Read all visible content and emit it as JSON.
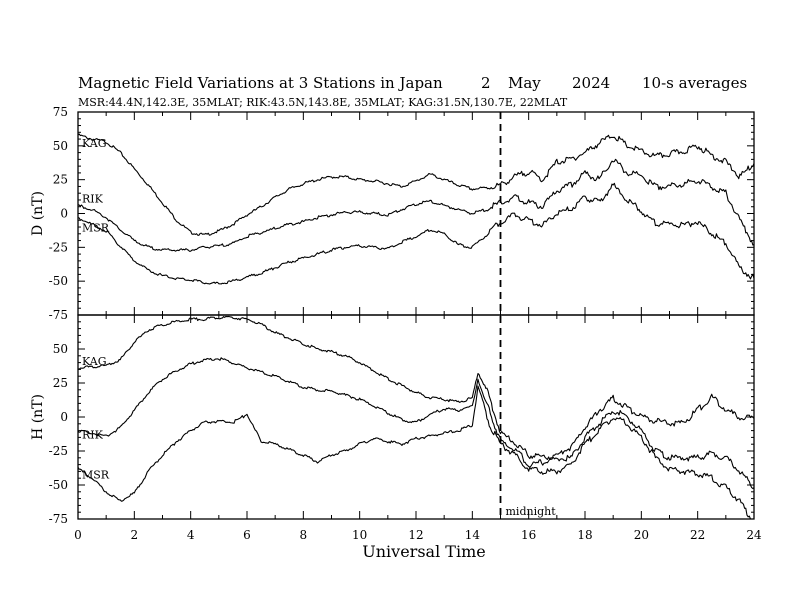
{
  "chart_data": {
    "type": "line",
    "title": {
      "main": "Magnetic Field Variations at 3 Stations in Japan",
      "day": "2",
      "month": "May",
      "year": "2024",
      "averaging": "10-s averages"
    },
    "subtitle": "MSR:44.4N,142.3E, 35MLAT;   RIK:43.5N,143.8E, 35MLAT;   KAG:31.5N,130.7E, 22MLAT",
    "xlabel": "Universal Time",
    "xlim": [
      0,
      24
    ],
    "xticks": [
      0,
      2,
      4,
      6,
      8,
      10,
      12,
      14,
      16,
      18,
      20,
      22,
      24
    ],
    "marker": {
      "x": 15,
      "label": "midnight"
    },
    "panels": [
      {
        "ylabel": "D (nT)",
        "ylim": [
          -75,
          75
        ],
        "yticks": [
          -75,
          -50,
          -25,
          0,
          25,
          50,
          75
        ],
        "series": [
          {
            "name": "KAG",
            "x": [
              0,
              0.5,
              1,
              1.5,
              2,
              2.5,
              3,
              3.5,
              4,
              4.5,
              5,
              5.5,
              6,
              6.5,
              7,
              7.5,
              8,
              8.5,
              9,
              9.5,
              10,
              10.5,
              11,
              11.5,
              12,
              12.5,
              13,
              13.5,
              14,
              14.5,
              15,
              15.5,
              16,
              16.5,
              17,
              17.5,
              18,
              18.5,
              19,
              19.5,
              20,
              20.5,
              21,
              21.5,
              22,
              22.5,
              23,
              23.5,
              24
            ],
            "y": [
              58,
              55,
              53,
              45,
              33,
              21,
              8,
              -5,
              -14,
              -16,
              -13,
              -8,
              -1,
              5,
              12,
              18,
              22,
              25,
              27,
              27,
              25,
              24,
              22,
              20,
              24,
              29,
              25,
              21,
              18,
              19,
              21,
              27,
              31,
              25,
              38,
              40,
              45,
              52,
              58,
              50,
              46,
              42,
              44,
              46,
              50,
              43,
              38,
              27,
              37
            ]
          },
          {
            "name": "RIK",
            "x": [
              0,
              0.5,
              1,
              1.5,
              2,
              2.5,
              3,
              3.5,
              4,
              4.5,
              5,
              5.5,
              6,
              6.5,
              7,
              7.5,
              8,
              8.5,
              9,
              9.5,
              10,
              10.5,
              11,
              11.5,
              12,
              12.5,
              13,
              13.5,
              14,
              14.5,
              15,
              15.5,
              16,
              16.5,
              17,
              17.5,
              18,
              18.5,
              19,
              19.5,
              20,
              20.5,
              21,
              21.5,
              22,
              22.5,
              23,
              23.5,
              24
            ],
            "y": [
              6,
              3,
              -3,
              -12,
              -20,
              -25,
              -27,
              -27,
              -27,
              -25,
              -24,
              -22,
              -17,
              -14,
              -11,
              -8,
              -6,
              -3,
              -1,
              1,
              1,
              0,
              -1,
              3,
              7,
              9,
              6,
              3,
              0,
              3,
              8,
              12,
              8,
              5,
              17,
              21,
              30,
              25,
              40,
              30,
              28,
              20,
              20,
              22,
              25,
              20,
              15,
              -5,
              -23
            ]
          },
          {
            "name": "MSR",
            "x": [
              0,
              0.5,
              1,
              1.5,
              2,
              2.5,
              3,
              3.5,
              4,
              4.5,
              5,
              5.5,
              6,
              6.5,
              7,
              7.5,
              8,
              8.5,
              9,
              9.5,
              10,
              10.5,
              11,
              11.5,
              12,
              12.5,
              13,
              13.5,
              14,
              14.5,
              15,
              15.5,
              16,
              16.5,
              17,
              17.5,
              18,
              18.5,
              19,
              19.5,
              20,
              20.5,
              21,
              21.5,
              22,
              22.5,
              23,
              23.5,
              24
            ],
            "y": [
              -3,
              -8,
              -13,
              -24,
              -35,
              -42,
              -46,
              -48,
              -49,
              -51,
              -52,
              -50,
              -47,
              -44,
              -40,
              -36,
              -33,
              -30,
              -27,
              -25,
              -24,
              -25,
              -26,
              -21,
              -17,
              -12,
              -15,
              -23,
              -25,
              -16,
              -6,
              -1,
              -5,
              -9,
              1,
              3,
              12,
              8,
              21,
              10,
              2,
              -7,
              -8,
              -9,
              -6,
              -15,
              -22,
              -40,
              -48
            ]
          }
        ]
      },
      {
        "ylabel": "H (nT)",
        "ylim": [
          -75,
          75
        ],
        "yticks": [
          -75,
          -50,
          -25,
          0,
          25,
          50,
          75
        ],
        "series": [
          {
            "name": "KAG",
            "x": [
              0,
              0.5,
              1,
              1.5,
              2,
              2.5,
              3,
              3.5,
              4,
              4.5,
              5,
              5.5,
              6,
              6.5,
              7,
              7.5,
              8,
              8.5,
              9,
              9.5,
              10,
              10.5,
              11,
              11.5,
              12,
              12.5,
              13,
              13.5,
              14,
              14.2,
              14.4,
              14.6,
              15,
              15.5,
              16,
              16.5,
              17,
              17.5,
              18,
              18.5,
              19,
              19.5,
              20,
              20.5,
              21,
              21.5,
              22,
              22.5,
              23,
              23.5,
              24
            ],
            "y": [
              36,
              37,
              38,
              42,
              55,
              64,
              68,
              70,
              72,
              72,
              73,
              73,
              72,
              68,
              62,
              58,
              54,
              50,
              48,
              45,
              40,
              34,
              28,
              23,
              18,
              14,
              13,
              11,
              14,
              33,
              25,
              15,
              -12,
              -18,
              -28,
              -30,
              -28,
              -22,
              -8,
              5,
              14,
              7,
              0,
              -3,
              -5,
              -4,
              5,
              15,
              6,
              -1,
              -1
            ]
          },
          {
            "name": "RIK",
            "x": [
              0,
              0.5,
              1,
              1.5,
              2,
              2.5,
              3,
              3.5,
              4,
              4.5,
              5,
              5.5,
              6,
              6.5,
              7,
              7.5,
              8,
              8.5,
              9,
              9.5,
              10,
              10.5,
              11,
              11.5,
              12,
              12.5,
              13,
              13.5,
              14,
              14.2,
              14.4,
              14.6,
              15,
              15.5,
              16,
              16.5,
              17,
              17.5,
              18,
              18.5,
              19,
              19.5,
              20,
              20.5,
              21,
              21.5,
              22,
              22.5,
              23,
              23.5,
              24
            ],
            "y": [
              -10,
              -12,
              -14,
              -8,
              5,
              18,
              28,
              34,
              39,
              42,
              43,
              40,
              36,
              33,
              30,
              26,
              22,
              20,
              19,
              16,
              13,
              8,
              3,
              -2,
              -4,
              2,
              6,
              5,
              8,
              28,
              15,
              5,
              -18,
              -23,
              -35,
              -33,
              -31,
              -30,
              -15,
              -5,
              5,
              0,
              -10,
              -25,
              -30,
              -30,
              -30,
              -27,
              -30,
              -40,
              -52
            ]
          },
          {
            "name": "MSR",
            "x": [
              0,
              0.5,
              1,
              1.5,
              2,
              2.5,
              3,
              3.5,
              4,
              4.5,
              5,
              5.5,
              6,
              6.5,
              7,
              7.5,
              8,
              8.5,
              9,
              9.5,
              10,
              10.5,
              11,
              11.5,
              12,
              12.5,
              13,
              13.5,
              14,
              14.2,
              14.4,
              14.6,
              15,
              15.5,
              16,
              16.5,
              17,
              17.5,
              18,
              18.5,
              19,
              19.5,
              20,
              20.5,
              21,
              21.5,
              22,
              22.5,
              23,
              23.5,
              24
            ],
            "y": [
              -38,
              -45,
              -55,
              -62,
              -56,
              -40,
              -28,
              -18,
              -10,
              -4,
              -3,
              -4,
              2,
              -18,
              -20,
              -24,
              -28,
              -33,
              -28,
              -25,
              -20,
              -16,
              -18,
              -20,
              -16,
              -14,
              -12,
              -10,
              -6,
              22,
              10,
              -5,
              -20,
              -28,
              -38,
              -40,
              -40,
              -35,
              -20,
              -10,
              0,
              -5,
              -15,
              -30,
              -38,
              -40,
              -42,
              -45,
              -52,
              -62,
              -78
            ]
          }
        ]
      }
    ]
  }
}
